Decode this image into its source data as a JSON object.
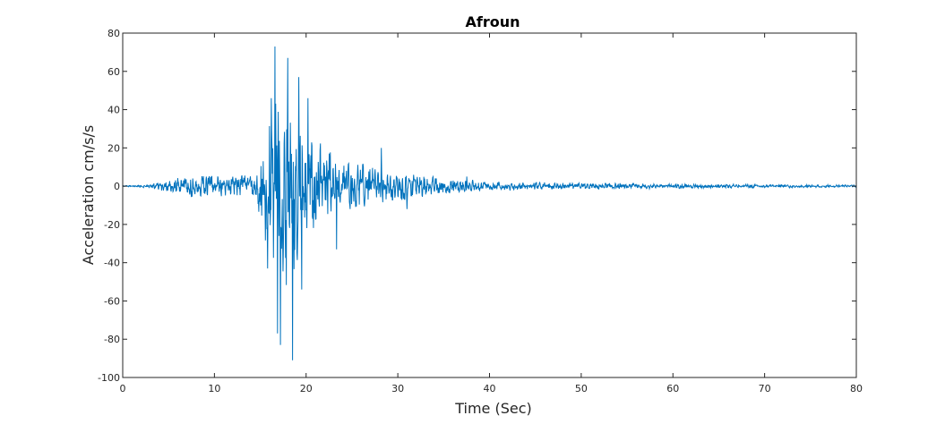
{
  "chart_data": {
    "type": "line",
    "title": "Afroun",
    "xlabel": "Time (Sec)",
    "ylabel": "Acceleration cm/s/s",
    "xlim": [
      0,
      80
    ],
    "ylim": [
      -100,
      80
    ],
    "xticks": [
      0,
      10,
      20,
      30,
      40,
      50,
      60,
      70,
      80
    ],
    "yticks": [
      -100,
      -80,
      -60,
      -40,
      -20,
      0,
      20,
      40,
      60,
      80
    ],
    "xtick_labels": [
      "0",
      "10",
      "20",
      "30",
      "40",
      "50",
      "60",
      "70",
      "80"
    ],
    "ytick_labels": [
      "-100",
      "-80",
      "-60",
      "-40",
      "-20",
      "0",
      "20",
      "40",
      "60",
      "80"
    ],
    "grid": false,
    "series_color": "#0072bd",
    "peaks": [
      {
        "x": 16.6,
        "y": 73
      },
      {
        "x": 18.0,
        "y": 67
      },
      {
        "x": 18.5,
        "y": -91
      },
      {
        "x": 17.2,
        "y": -83
      },
      {
        "x": 16.9,
        "y": -77
      },
      {
        "x": 19.5,
        "y": -54
      },
      {
        "x": 15.8,
        "y": -43
      },
      {
        "x": 19.2,
        "y": 57
      },
      {
        "x": 16.2,
        "y": 46
      },
      {
        "x": 20.2,
        "y": 46
      },
      {
        "x": 23.3,
        "y": -33
      },
      {
        "x": 28.2,
        "y": 20
      },
      {
        "x": 31.0,
        "y": -12
      },
      {
        "x": 37.5,
        "y": 5
      }
    ],
    "envelope": [
      {
        "x": 0,
        "a": 0.3
      },
      {
        "x": 2.5,
        "a": 0.6
      },
      {
        "x": 5,
        "a": 3.5
      },
      {
        "x": 8,
        "a": 6
      },
      {
        "x": 11,
        "a": 5.5
      },
      {
        "x": 13.5,
        "a": 6
      },
      {
        "x": 14.5,
        "a": 7
      },
      {
        "x": 15.3,
        "a": 20
      },
      {
        "x": 16.5,
        "a": 52
      },
      {
        "x": 18.5,
        "a": 52
      },
      {
        "x": 19.5,
        "a": 33
      },
      {
        "x": 21.5,
        "a": 22
      },
      {
        "x": 24,
        "a": 13
      },
      {
        "x": 27,
        "a": 10
      },
      {
        "x": 30,
        "a": 8
      },
      {
        "x": 33,
        "a": 6
      },
      {
        "x": 36,
        "a": 3.5
      },
      {
        "x": 40,
        "a": 2.2
      },
      {
        "x": 50,
        "a": 1.6
      },
      {
        "x": 60,
        "a": 1.2
      },
      {
        "x": 70,
        "a": 0.8
      },
      {
        "x": 80,
        "a": 0.6
      }
    ]
  }
}
